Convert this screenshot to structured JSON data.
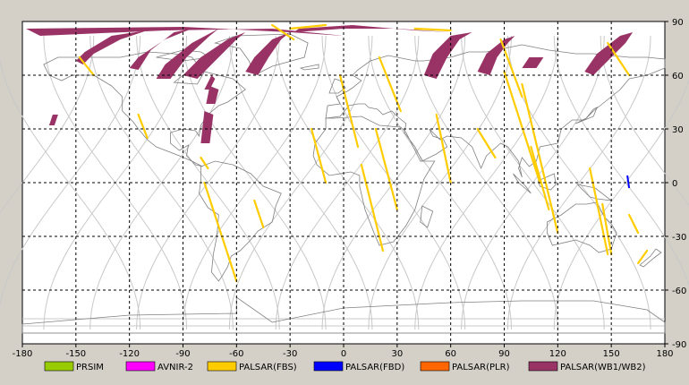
{
  "map": {
    "x_ticks": [
      -180,
      -150,
      -120,
      -90,
      -60,
      -30,
      0,
      30,
      60,
      90,
      120,
      150,
      180
    ],
    "y_ticks": [
      90,
      60,
      30,
      0,
      -30,
      -60,
      -90
    ],
    "x_range": [
      -180,
      180
    ],
    "y_range": [
      -90,
      90
    ],
    "grid": "dashed",
    "colors": {
      "background": "#ffffff",
      "coast": "#808080",
      "orbit": "#c8c8c8"
    }
  },
  "legend": [
    {
      "label": "PRSIM",
      "color": "#99cc00"
    },
    {
      "label": "AVNIR-2",
      "color": "#ff00ff"
    },
    {
      "label": "PALSAR(FBS)",
      "color": "#ffcc00"
    },
    {
      "label": "PALSAR(FBD)",
      "color": "#0000ff"
    },
    {
      "label": "PALSAR(PLR)",
      "color": "#ff6600"
    },
    {
      "label": "PALSAR(WB1/WB2)",
      "color": "#993366"
    }
  ],
  "observations": {
    "wb_swaths": [
      {
        "pts": [
          [
            -178,
            86
          ],
          [
            -90,
            87
          ],
          [
            -30,
            84
          ],
          [
            0,
            82
          ],
          [
            -40,
            86
          ],
          [
            -100,
            85
          ],
          [
            -170,
            82
          ]
        ]
      },
      {
        "pts": [
          [
            -150,
            68
          ],
          [
            -145,
            73
          ],
          [
            -130,
            82
          ],
          [
            -110,
            85
          ],
          [
            -125,
            80
          ],
          [
            -140,
            72
          ],
          [
            -146,
            66
          ]
        ]
      },
      {
        "pts": [
          [
            -120,
            64
          ],
          [
            -115,
            70
          ],
          [
            -100,
            80
          ],
          [
            -85,
            86
          ],
          [
            -95,
            84
          ],
          [
            -108,
            74
          ],
          [
            -115,
            63
          ]
        ]
      },
      {
        "pts": [
          [
            -105,
            58
          ],
          [
            -100,
            66
          ],
          [
            -85,
            78
          ],
          [
            -70,
            86
          ],
          [
            -75,
            82
          ],
          [
            -88,
            70
          ],
          [
            -97,
            58
          ]
        ]
      },
      {
        "pts": [
          [
            -90,
            60
          ],
          [
            -80,
            70
          ],
          [
            -65,
            80
          ],
          [
            -55,
            84
          ],
          [
            -60,
            80
          ],
          [
            -72,
            68
          ],
          [
            -82,
            58
          ]
        ]
      },
      {
        "pts": [
          [
            -55,
            62
          ],
          [
            -50,
            70
          ],
          [
            -40,
            80
          ],
          [
            -30,
            84
          ],
          [
            -35,
            80
          ],
          [
            -42,
            70
          ],
          [
            -48,
            60
          ]
        ]
      },
      {
        "pts": [
          [
            -78,
            52
          ],
          [
            -74,
            60
          ],
          [
            -72,
            58
          ],
          [
            -75,
            52
          ]
        ]
      },
      {
        "pts": [
          [
            -77,
            44
          ],
          [
            -75,
            54
          ],
          [
            -70,
            52
          ],
          [
            -72,
            44
          ]
        ]
      },
      {
        "pts": [
          [
            -80,
            22
          ],
          [
            -78,
            40
          ],
          [
            -73,
            38
          ],
          [
            -75,
            22
          ]
        ]
      },
      {
        "pts": [
          [
            -165,
            32
          ],
          [
            -163,
            38
          ],
          [
            -160,
            38
          ],
          [
            -162,
            32
          ]
        ]
      },
      {
        "pts": [
          [
            45,
            60
          ],
          [
            50,
            72
          ],
          [
            60,
            82
          ],
          [
            72,
            84
          ],
          [
            65,
            80
          ],
          [
            58,
            70
          ],
          [
            52,
            58
          ]
        ]
      },
      {
        "pts": [
          [
            75,
            62
          ],
          [
            80,
            72
          ],
          [
            90,
            80
          ],
          [
            96,
            82
          ],
          [
            92,
            78
          ],
          [
            86,
            70
          ],
          [
            82,
            60
          ]
        ]
      },
      {
        "pts": [
          [
            100,
            64
          ],
          [
            104,
            70
          ],
          [
            112,
            70
          ],
          [
            108,
            64
          ]
        ]
      },
      {
        "pts": [
          [
            135,
            62
          ],
          [
            142,
            72
          ],
          [
            155,
            82
          ],
          [
            162,
            84
          ],
          [
            158,
            78
          ],
          [
            148,
            68
          ],
          [
            140,
            60
          ]
        ]
      },
      {
        "pts": [
          [
            -25,
            86
          ],
          [
            5,
            88
          ],
          [
            40,
            85
          ],
          [
            60,
            84
          ],
          [
            30,
            86
          ],
          [
            0,
            86
          ],
          [
            -28,
            84
          ]
        ]
      }
    ],
    "fbs_lines": [
      {
        "pts": [
          [
            -148,
            70
          ],
          [
            -140,
            60
          ]
        ]
      },
      {
        "pts": [
          [
            -115,
            38
          ],
          [
            -110,
            25
          ]
        ]
      },
      {
        "pts": [
          [
            -40,
            88
          ],
          [
            -28,
            80
          ]
        ]
      },
      {
        "pts": [
          [
            -10,
            88
          ],
          [
            -30,
            86
          ]
        ]
      },
      {
        "pts": [
          [
            -18,
            30
          ],
          [
            -10,
            0
          ]
        ]
      },
      {
        "pts": [
          [
            -2,
            60
          ],
          [
            8,
            20
          ]
        ]
      },
      {
        "pts": [
          [
            10,
            10
          ],
          [
            22,
            -38
          ]
        ]
      },
      {
        "pts": [
          [
            18,
            30
          ],
          [
            30,
            -15
          ]
        ]
      },
      {
        "pts": [
          [
            20,
            70
          ],
          [
            32,
            40
          ]
        ]
      },
      {
        "pts": [
          [
            52,
            38
          ],
          [
            60,
            0
          ]
        ]
      },
      {
        "pts": [
          [
            75,
            30
          ],
          [
            85,
            14
          ]
        ]
      },
      {
        "pts": [
          [
            88,
            80
          ],
          [
            100,
            48
          ]
        ]
      },
      {
        "pts": [
          [
            90,
            62
          ],
          [
            110,
            0
          ]
        ]
      },
      {
        "pts": [
          [
            100,
            55
          ],
          [
            120,
            -28
          ]
        ]
      },
      {
        "pts": [
          [
            105,
            20
          ],
          [
            115,
            -15
          ]
        ]
      },
      {
        "pts": [
          [
            138,
            8
          ],
          [
            148,
            -40
          ]
        ]
      },
      {
        "pts": [
          [
            145,
            -12
          ],
          [
            150,
            -40
          ]
        ]
      },
      {
        "pts": [
          [
            148,
            78
          ],
          [
            160,
            60
          ]
        ]
      },
      {
        "pts": [
          [
            160,
            -18
          ],
          [
            165,
            -28
          ]
        ]
      },
      {
        "pts": [
          [
            165,
            -45
          ],
          [
            170,
            -38
          ]
        ]
      },
      {
        "pts": [
          [
            -78,
            0
          ],
          [
            -60,
            -55
          ]
        ]
      },
      {
        "pts": [
          [
            -50,
            -10
          ],
          [
            -45,
            -25
          ]
        ]
      },
      {
        "pts": [
          [
            -80,
            14
          ],
          [
            -76,
            8
          ]
        ]
      },
      {
        "pts": [
          [
            40,
            86
          ],
          [
            60,
            85
          ]
        ]
      }
    ],
    "fbd_lines": [
      {
        "pts": [
          [
            159,
            4
          ],
          [
            160,
            -3
          ]
        ]
      }
    ]
  }
}
